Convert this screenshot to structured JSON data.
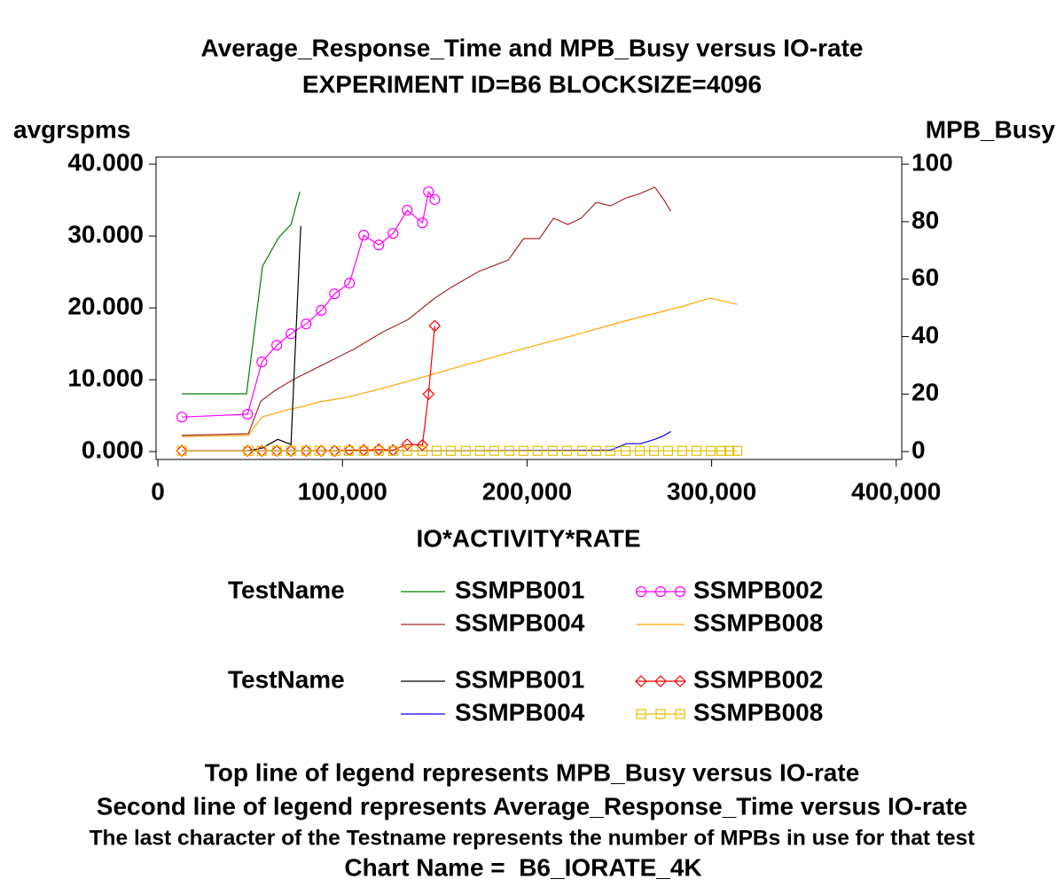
{
  "chart_data": {
    "type": "line",
    "title": "Average_Response_Time and MPB_Busy versus IO-rate",
    "subtitle": "EXPERIMENT ID=B6 BLOCKSIZE=4096",
    "ylabel": "avgrspms",
    "y2label": "MPB_Busy",
    "xlabel": "IO*ACTIVITY*RATE",
    "xlim": [
      -1000,
      403000
    ],
    "xticks": [
      0,
      {
        "value": 100000,
        "label": "100,000"
      },
      {
        "value": 200000,
        "label": "200,000"
      },
      {
        "value": 300000,
        "label": "300,000"
      },
      {
        "value": 400000,
        "label": "400,000"
      }
    ],
    "ylim": [
      -1.1,
      41
    ],
    "yticks": [
      {
        "value": 0,
        "label": "0.000"
      },
      {
        "value": 10,
        "label": "10.000"
      },
      {
        "value": 20,
        "label": "20.000"
      },
      {
        "value": 30,
        "label": "30.000"
      },
      {
        "value": 40,
        "label": "40.000"
      }
    ],
    "y2lim": [
      -2.75,
      102.5
    ],
    "y2ticks": [
      0,
      20,
      40,
      60,
      80,
      100
    ],
    "legend_titles": [
      "TestName",
      "TestName"
    ],
    "series": [
      {
        "name": "SSMPB001",
        "color": "#008000",
        "axis": "y2",
        "marker": null,
        "x": [
          13000,
          48000,
          56700,
          65400,
          72100,
          76900
        ],
        "values": [
          20.1,
          20.1,
          64.5,
          74.4,
          79.0,
          90.4
        ]
      },
      {
        "name": "SSMPB002",
        "color": "#ff00ff",
        "axis": "y2",
        "marker": "circle",
        "x": [
          13000,
          48600,
          56300,
          64400,
          72100,
          80300,
          88500,
          95700,
          103800,
          111500,
          119700,
          127400,
          135100,
          143300,
          146600,
          150000
        ],
        "values": [
          12.0,
          13.0,
          31.2,
          37.0,
          41.0,
          44.4,
          49.1,
          54.9,
          58.6,
          75.3,
          71.9,
          75.9,
          84.0,
          79.6,
          90.4,
          87.7
        ]
      },
      {
        "name": "SSMPB004",
        "color": "#a52a2a",
        "axis": "y2",
        "marker": null,
        "x": [
          13000,
          49000,
          55800,
          63500,
          73100,
          87500,
          106700,
          121200,
          135600,
          150000,
          159600,
          174000,
          189900,
          198100,
          206700,
          214400,
          222100,
          229300,
          237500,
          245200,
          253800,
          261500,
          269200,
          274000,
          277900
        ],
        "values": [
          5.6,
          6.2,
          17.6,
          21.3,
          25.0,
          29.6,
          35.8,
          41.4,
          46.0,
          53.4,
          57.4,
          62.7,
          66.7,
          74.1,
          74.1,
          81.2,
          79.0,
          81.2,
          86.7,
          85.5,
          88.3,
          89.8,
          92.0,
          87.7,
          83.6
        ]
      },
      {
        "name": "SSMPB008",
        "color": "#ffa500",
        "axis": "y2",
        "marker": null,
        "x": [
          13000,
          49000,
          56300,
          68300,
          80300,
          87500,
          101900,
          121200,
          140400,
          169200,
          198100,
          226900,
          250900,
          284600,
          299000,
          313900
        ],
        "values": [
          5.2,
          5.6,
          12.0,
          14.2,
          16.0,
          17.3,
          18.8,
          21.9,
          25.3,
          30.6,
          35.8,
          40.7,
          45.1,
          50.6,
          53.4,
          51.2
        ]
      },
      {
        "name": "SSMPB001",
        "color": "#000000",
        "axis": "y",
        "marker": null,
        "x": [
          13000,
          48600,
          56700,
          64900,
          72100,
          77400
        ],
        "values": [
          0.1,
          0.1,
          0.5,
          1.7,
          1.0,
          31.4
        ]
      },
      {
        "name": "SSMPB002",
        "color": "#ff0000",
        "axis": "y",
        "marker": "diamond",
        "x": [
          13000,
          48600,
          56300,
          64400,
          72100,
          80300,
          88500,
          95700,
          103800,
          111500,
          119700,
          127400,
          135100,
          143300,
          146600,
          150000
        ],
        "values": [
          0.1,
          0.1,
          0.1,
          0.1,
          0.1,
          0.1,
          0.1,
          0.1,
          0.2,
          0.2,
          0.3,
          0.2,
          1.0,
          0.9,
          8.0,
          17.5
        ]
      },
      {
        "name": "SSMPB004",
        "color": "#0000ff",
        "axis": "y",
        "marker": null,
        "x": [
          13000,
          49000,
          150000,
          245200,
          253800,
          261500,
          269200,
          274000,
          277900
        ],
        "values": [
          0.1,
          0.1,
          0.1,
          0.2,
          1.1,
          1.1,
          1.7,
          2.2,
          2.8
        ]
      },
      {
        "name": "SSMPB008",
        "color": "#e6c000",
        "axis": "y",
        "marker": "square",
        "x": [
          13000,
          49000,
          56300,
          64400,
          72100,
          80300,
          87500,
          96200,
          103400,
          111500,
          119700,
          127400,
          135100,
          143300,
          151000,
          158700,
          166800,
          174500,
          182200,
          190400,
          198100,
          205800,
          213900,
          221600,
          229800,
          237500,
          245200,
          253400,
          261100,
          268800,
          276400,
          284100,
          291800,
          299500,
          305300,
          309600,
          313900
        ],
        "values": [
          0.1,
          0.1,
          0.1,
          0.1,
          0.1,
          0.1,
          0.1,
          0.1,
          0.1,
          0.1,
          0.1,
          0.1,
          0.1,
          0.1,
          0.1,
          0.1,
          0.1,
          0.1,
          0.1,
          0.1,
          0.1,
          0.1,
          0.1,
          0.1,
          0.1,
          0.1,
          0.1,
          0.1,
          0.1,
          0.1,
          0.1,
          0.1,
          0.1,
          0.1,
          0.1,
          0.1,
          0.1
        ]
      }
    ],
    "footnotes": [
      "Top line of legend represents MPB_Busy versus IO-rate",
      "Second line of legend represents Average_Response_Time versus IO-rate",
      "The last character of the Testname represents the number of MPBs in use for that test",
      "Chart Name =  B6_IORATE_4K"
    ]
  }
}
